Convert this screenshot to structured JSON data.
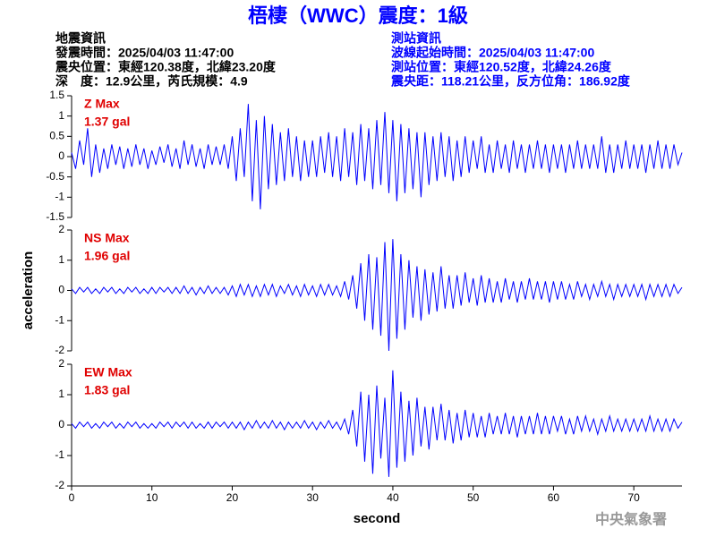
{
  "header": {
    "title": "梧棲（WWC）震度：1級",
    "event": [
      "地震資訊",
      "發震時間：2025/04/03 11:47:00",
      "震央位置：東經120.38度，北緯23.20度",
      "深　度：12.9公里，芮氏規模：4.9"
    ],
    "station": [
      "測站資訊",
      "波線起始時間：2025/04/03 11:47:00",
      "測站位置：東經120.52度，北緯24.26度",
      "震央距：118.21公里，反方位角：186.92度"
    ]
  },
  "footer": "中央氣象署",
  "chart_data": [
    {
      "type": "line",
      "annotation": [
        "Z Max",
        "1.37 gal"
      ],
      "xlim": [
        0,
        76
      ],
      "ylim": [
        -1.5,
        1.5
      ],
      "yticks": [
        -1.5,
        -1,
        -0.5,
        0,
        0.5,
        1,
        1.5
      ],
      "x": [
        0,
        0.5,
        1,
        1.5,
        2,
        2.5,
        3,
        3.5,
        4,
        4.5,
        5,
        5.5,
        6,
        6.5,
        7,
        7.5,
        8,
        8.5,
        9,
        9.5,
        10,
        10.5,
        11,
        11.5,
        12,
        12.5,
        13,
        13.5,
        14,
        14.5,
        15,
        15.5,
        16,
        16.5,
        17,
        17.5,
        18,
        18.5,
        19,
        19.5,
        20,
        20.5,
        21,
        21.5,
        22,
        22.5,
        23,
        23.5,
        24,
        24.5,
        25,
        25.5,
        26,
        26.5,
        27,
        27.5,
        28,
        28.5,
        29,
        29.5,
        30,
        30.5,
        31,
        31.5,
        32,
        32.5,
        33,
        33.5,
        34,
        34.5,
        35,
        35.5,
        36,
        36.5,
        37,
        37.5,
        38,
        38.5,
        39,
        39.5,
        40,
        40.5,
        41,
        41.5,
        42,
        42.5,
        43,
        43.5,
        44,
        44.5,
        45,
        45.5,
        46,
        46.5,
        47,
        47.5,
        48,
        48.5,
        49,
        49.5,
        50,
        50.5,
        51,
        51.5,
        52,
        52.5,
        53,
        53.5,
        54,
        54.5,
        55,
        55.5,
        56,
        56.5,
        57,
        57.5,
        58,
        58.5,
        59,
        59.5,
        60,
        60.5,
        61,
        61.5,
        62,
        62.5,
        63,
        63.5,
        64,
        64.5,
        65,
        65.5,
        66,
        66.5,
        67,
        67.5,
        68,
        68.5,
        69,
        69.5,
        70,
        70.5,
        71,
        71.5,
        72,
        72.5,
        73,
        73.5,
        74,
        74.5,
        75,
        75.5,
        76
      ],
      "series": [
        {
          "color": "#0000ff",
          "values": [
            0.1,
            -0.3,
            0.4,
            -0.2,
            0.7,
            -0.5,
            0.3,
            -0.4,
            0.2,
            -0.3,
            0.3,
            -0.2,
            0.25,
            -0.3,
            0.2,
            -0.25,
            0.3,
            -0.2,
            0.2,
            -0.3,
            0.15,
            -0.2,
            0.25,
            -0.15,
            0.3,
            -0.25,
            0.2,
            -0.3,
            0.4,
            -0.2,
            0.3,
            -0.25,
            0.2,
            -0.3,
            0.3,
            -0.2,
            0.25,
            -0.2,
            0.3,
            -0.3,
            0.5,
            -0.6,
            0.7,
            -0.5,
            1.3,
            -1.1,
            0.9,
            -1.3,
            1.0,
            -0.8,
            0.8,
            -0.7,
            0.6,
            -0.6,
            0.7,
            -0.5,
            0.5,
            -0.6,
            0.4,
            -0.5,
            0.4,
            -0.5,
            0.5,
            -0.4,
            0.6,
            -0.5,
            0.5,
            -0.6,
            0.7,
            -0.5,
            0.6,
            -0.7,
            0.8,
            -0.6,
            0.7,
            -0.8,
            0.9,
            -0.7,
            1.1,
            -0.9,
            0.9,
            -1.1,
            0.8,
            -0.9,
            0.7,
            -0.8,
            0.6,
            -1.0,
            0.6,
            -0.7,
            0.5,
            -0.6,
            0.6,
            -0.5,
            0.5,
            -0.6,
            0.4,
            -0.5,
            0.5,
            -0.4,
            0.4,
            -0.3,
            0.5,
            -0.4,
            0.3,
            -0.4,
            0.4,
            -0.3,
            0.3,
            -0.4,
            0.4,
            -0.3,
            0.3,
            -0.4,
            0.3,
            -0.3,
            0.4,
            -0.3,
            0.3,
            -0.4,
            0.3,
            -0.3,
            0.3,
            -0.4,
            0.3,
            -0.3,
            0.4,
            -0.3,
            0.3,
            -0.3,
            0.3,
            -0.3,
            0.5,
            -0.4,
            0.3,
            -0.4,
            0.3,
            -0.3,
            0.4,
            -0.3,
            0.3,
            -0.3,
            0.3,
            -0.4,
            0.3,
            -0.3,
            0.4,
            -0.3,
            0.3,
            -0.3,
            0.3,
            -0.2,
            0.1
          ]
        }
      ]
    },
    {
      "type": "line",
      "annotation": [
        "NS Max",
        "1.96 gal"
      ],
      "ylabel": "acceleration",
      "xlim": [
        0,
        76
      ],
      "ylim": [
        -2,
        2
      ],
      "yticks": [
        -2,
        -1,
        0,
        1,
        2
      ],
      "x": [
        0,
        0.5,
        1,
        1.5,
        2,
        2.5,
        3,
        3.5,
        4,
        4.5,
        5,
        5.5,
        6,
        6.5,
        7,
        7.5,
        8,
        8.5,
        9,
        9.5,
        10,
        10.5,
        11,
        11.5,
        12,
        12.5,
        13,
        13.5,
        14,
        14.5,
        15,
        15.5,
        16,
        16.5,
        17,
        17.5,
        18,
        18.5,
        19,
        19.5,
        20,
        20.5,
        21,
        21.5,
        22,
        22.5,
        23,
        23.5,
        24,
        24.5,
        25,
        25.5,
        26,
        26.5,
        27,
        27.5,
        28,
        28.5,
        29,
        29.5,
        30,
        30.5,
        31,
        31.5,
        32,
        32.5,
        33,
        33.5,
        34,
        34.5,
        35,
        35.5,
        36,
        36.5,
        37,
        37.5,
        38,
        38.5,
        39,
        39.5,
        40,
        40.5,
        41,
        41.5,
        42,
        42.5,
        43,
        43.5,
        44,
        44.5,
        45,
        45.5,
        46,
        46.5,
        47,
        47.5,
        48,
        48.5,
        49,
        49.5,
        50,
        50.5,
        51,
        51.5,
        52,
        52.5,
        53,
        53.5,
        54,
        54.5,
        55,
        55.5,
        56,
        56.5,
        57,
        57.5,
        58,
        58.5,
        59,
        59.5,
        60,
        60.5,
        61,
        61.5,
        62,
        62.5,
        63,
        63.5,
        64,
        64.5,
        65,
        65.5,
        66,
        66.5,
        67,
        67.5,
        68,
        68.5,
        69,
        69.5,
        70,
        70.5,
        71,
        71.5,
        72,
        72.5,
        73,
        73.5,
        74,
        74.5,
        75,
        75.5,
        76
      ],
      "series": [
        {
          "color": "#0000ff",
          "values": [
            0.05,
            -0.1,
            0.1,
            -0.05,
            0.1,
            -0.1,
            0.05,
            -0.1,
            0.1,
            -0.05,
            0.1,
            -0.1,
            0.05,
            -0.1,
            0.1,
            -0.05,
            0.1,
            -0.1,
            0.05,
            -0.1,
            0.1,
            -0.1,
            0.1,
            -0.05,
            0.1,
            -0.1,
            0.1,
            -0.1,
            0.15,
            -0.1,
            0.1,
            -0.15,
            0.1,
            -0.1,
            0.15,
            -0.1,
            0.1,
            -0.1,
            0.1,
            -0.15,
            0.15,
            -0.2,
            0.2,
            -0.15,
            0.2,
            -0.2,
            0.15,
            -0.2,
            0.2,
            -0.15,
            0.2,
            -0.2,
            0.15,
            -0.1,
            0.2,
            -0.15,
            0.15,
            -0.2,
            0.2,
            -0.15,
            0.15,
            -0.2,
            0.2,
            -0.15,
            0.2,
            -0.15,
            0.15,
            -0.2,
            0.3,
            -0.3,
            0.5,
            -0.6,
            0.9,
            -1.0,
            1.2,
            -1.3,
            1.1,
            -1.5,
            1.6,
            -2.0,
            1.7,
            -1.6,
            1.2,
            -1.3,
            1.0,
            -0.9,
            0.8,
            -1.0,
            0.7,
            -0.8,
            0.6,
            -0.7,
            0.8,
            -0.6,
            0.5,
            -0.6,
            0.5,
            -0.5,
            0.6,
            -0.4,
            0.4,
            -0.5,
            0.5,
            -0.4,
            0.4,
            -0.4,
            0.3,
            -0.4,
            0.4,
            -0.3,
            0.3,
            -0.4,
            0.3,
            -0.3,
            0.4,
            -0.3,
            0.3,
            -0.3,
            0.3,
            -0.4,
            0.3,
            -0.3,
            0.3,
            -0.3,
            0.2,
            -0.3,
            0.3,
            -0.2,
            0.2,
            -0.3,
            0.2,
            -0.2,
            0.3,
            -0.2,
            0.2,
            -0.3,
            0.2,
            -0.2,
            0.2,
            -0.2,
            0.2,
            -0.2,
            0.2,
            -0.3,
            0.2,
            -0.2,
            0.2,
            -0.2,
            0.2,
            -0.2,
            0.2,
            -0.1,
            0.1
          ]
        }
      ]
    },
    {
      "type": "line",
      "annotation": [
        "EW Max",
        "1.83 gal"
      ],
      "xlabel": "second",
      "xlim": [
        0,
        76
      ],
      "xticks": [
        0,
        10,
        20,
        30,
        40,
        50,
        60,
        70
      ],
      "ylim": [
        -2,
        2
      ],
      "yticks": [
        -2,
        -1,
        0,
        1,
        2
      ],
      "x": [
        0,
        0.5,
        1,
        1.5,
        2,
        2.5,
        3,
        3.5,
        4,
        4.5,
        5,
        5.5,
        6,
        6.5,
        7,
        7.5,
        8,
        8.5,
        9,
        9.5,
        10,
        10.5,
        11,
        11.5,
        12,
        12.5,
        13,
        13.5,
        14,
        14.5,
        15,
        15.5,
        16,
        16.5,
        17,
        17.5,
        18,
        18.5,
        19,
        19.5,
        20,
        20.5,
        21,
        21.5,
        22,
        22.5,
        23,
        23.5,
        24,
        24.5,
        25,
        25.5,
        26,
        26.5,
        27,
        27.5,
        28,
        28.5,
        29,
        29.5,
        30,
        30.5,
        31,
        31.5,
        32,
        32.5,
        33,
        33.5,
        34,
        34.5,
        35,
        35.5,
        36,
        36.5,
        37,
        37.5,
        38,
        38.5,
        39,
        39.5,
        40,
        40.5,
        41,
        41.5,
        42,
        42.5,
        43,
        43.5,
        44,
        44.5,
        45,
        45.5,
        46,
        46.5,
        47,
        47.5,
        48,
        48.5,
        49,
        49.5,
        50,
        50.5,
        51,
        51.5,
        52,
        52.5,
        53,
        53.5,
        54,
        54.5,
        55,
        55.5,
        56,
        56.5,
        57,
        57.5,
        58,
        58.5,
        59,
        59.5,
        60,
        60.5,
        61,
        61.5,
        62,
        62.5,
        63,
        63.5,
        64,
        64.5,
        65,
        65.5,
        66,
        66.5,
        67,
        67.5,
        68,
        68.5,
        69,
        69.5,
        70,
        70.5,
        71,
        71.5,
        72,
        72.5,
        73,
        73.5,
        74,
        74.5,
        75,
        75.5,
        76
      ],
      "series": [
        {
          "color": "#0000ff",
          "values": [
            0.05,
            -0.1,
            0.1,
            -0.05,
            0.1,
            -0.1,
            0.05,
            -0.1,
            0.1,
            -0.05,
            0.1,
            -0.1,
            0.05,
            -0.1,
            0.1,
            -0.05,
            0.1,
            -0.1,
            0.05,
            -0.1,
            0.05,
            -0.1,
            0.1,
            -0.05,
            0.1,
            -0.1,
            0.1,
            -0.05,
            0.1,
            -0.1,
            0.1,
            -0.1,
            0.05,
            -0.1,
            0.1,
            -0.1,
            0.1,
            -0.05,
            0.1,
            -0.1,
            0.1,
            -0.1,
            0.1,
            -0.15,
            0.1,
            -0.1,
            0.15,
            -0.1,
            0.1,
            -0.1,
            0.15,
            -0.1,
            0.1,
            -0.15,
            0.1,
            -0.1,
            0.1,
            -0.1,
            0.15,
            -0.1,
            0.1,
            -0.15,
            0.1,
            -0.1,
            0.15,
            -0.1,
            0.1,
            -0.15,
            0.2,
            -0.3,
            0.5,
            -0.7,
            1.1,
            -1.2,
            1.0,
            -1.6,
            1.3,
            -1.1,
            0.9,
            -1.7,
            1.8,
            -1.4,
            1.1,
            -1.2,
            0.8,
            -1.0,
            0.9,
            -0.7,
            0.6,
            -0.8,
            0.6,
            -0.5,
            0.7,
            -0.5,
            0.5,
            -0.6,
            0.4,
            -0.5,
            0.5,
            -0.4,
            0.4,
            -0.4,
            0.3,
            -0.4,
            0.4,
            -0.3,
            0.3,
            -0.3,
            0.4,
            -0.3,
            0.3,
            -0.4,
            0.3,
            -0.3,
            0.3,
            -0.3,
            0.4,
            -0.3,
            0.3,
            -0.3,
            0.3,
            -0.2,
            0.3,
            -0.3,
            0.2,
            -0.3,
            0.3,
            -0.2,
            0.3,
            -0.2,
            0.2,
            -0.3,
            0.2,
            -0.2,
            0.3,
            -0.2,
            0.2,
            -0.2,
            0.2,
            -0.2,
            0.2,
            -0.2,
            0.2,
            -0.2,
            0.3,
            -0.2,
            0.2,
            -0.2,
            0.2,
            -0.2,
            0.2,
            -0.1,
            0.1
          ]
        }
      ]
    }
  ]
}
